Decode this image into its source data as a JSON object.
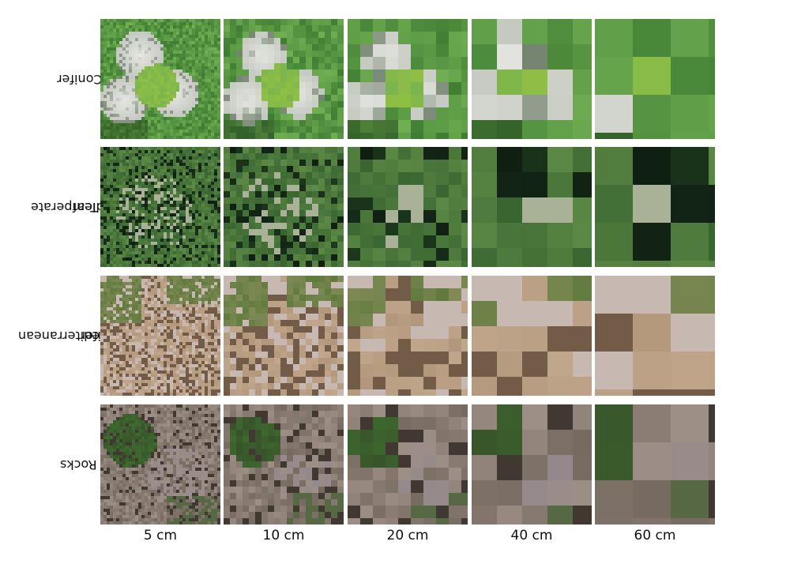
{
  "rows": [
    {
      "label_line1": "A: Conifer",
      "label_line2": "",
      "scene": "conifer",
      "colors": {
        "canopy": "#3f7d32",
        "canopy_light": "#6fae52",
        "dead": "#e6e6e2",
        "tree": "#8fbf45",
        "shadow": "#1e3a18"
      }
    },
    {
      "label_line1": "B: Temperate",
      "label_line2": "Broadleaf",
      "scene": "broadleaf",
      "colors": {
        "canopy": "#2e5a2a",
        "canopy_light": "#5d8a46",
        "dead": "#c9c3b8",
        "tree": "#4c7a3a",
        "shadow": "#0f1e12"
      }
    },
    {
      "label_line1": "C: Mediterranean",
      "label_line2": "Conifer",
      "scene": "mediterranean",
      "colors": {
        "canopy": "#a98e72",
        "canopy_light": "#c7ad92",
        "dead": "#c8c0c8",
        "tree": "#5f7a3c",
        "shadow": "#3b2a1e"
      }
    },
    {
      "label_line1": "D: Rocks",
      "label_line2": "",
      "scene": "rocks",
      "colors": {
        "canopy": "#6e6258",
        "canopy_light": "#9e8f86",
        "dead": "#8d8490",
        "tree": "#3f7030",
        "shadow": "#2d2620"
      }
    }
  ],
  "columns": [
    {
      "label": "5 cm",
      "pixel": 1
    },
    {
      "label": "10 cm",
      "pixel": 2
    },
    {
      "label": "20 cm",
      "pixel": 4
    },
    {
      "label": "40 cm",
      "pixel": 8
    },
    {
      "label": "60 cm",
      "pixel": 12
    }
  ]
}
